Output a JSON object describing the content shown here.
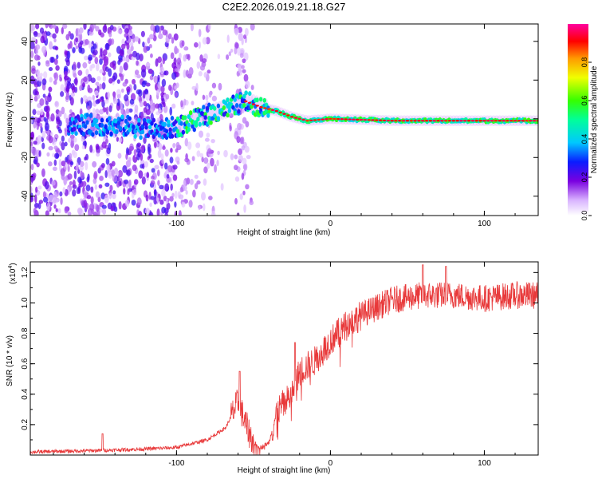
{
  "title": "C2E2.2026.019.21.18.G27",
  "chart_data": [
    {
      "type": "heatmap",
      "xlabel": "Height of straight line (km)",
      "ylabel": "Frequency (Hz)",
      "xlim": [
        -195,
        135
      ],
      "ylim": [
        -50,
        49
      ],
      "xticks": [
        -100,
        0,
        100
      ],
      "yticks": [
        -40,
        -20,
        0,
        20,
        40
      ],
      "ridge_frequency_hz": [
        {
          "x": -160,
          "y": -3
        },
        {
          "x": -130,
          "y": -4
        },
        {
          "x": -110,
          "y": -6
        },
        {
          "x": -95,
          "y": -3
        },
        {
          "x": -80,
          "y": 2
        },
        {
          "x": -65,
          "y": 6
        },
        {
          "x": -55,
          "y": 9
        },
        {
          "x": -45,
          "y": 6
        },
        {
          "x": -35,
          "y": 4
        },
        {
          "x": -25,
          "y": 1
        },
        {
          "x": -15,
          "y": -1
        },
        {
          "x": 0,
          "y": 0
        },
        {
          "x": 40,
          "y": -1
        },
        {
          "x": 80,
          "y": -1
        },
        {
          "x": 135,
          "y": -1
        }
      ],
      "colorbar": {
        "label": "Normalized spectral amplitude",
        "range": [
          0,
          1
        ],
        "ticks": [
          "0.0",
          "0.2",
          "0.4",
          "0.6",
          "0.8"
        ]
      }
    },
    {
      "type": "line",
      "series_name": "SNR",
      "color": "#e8393a",
      "xlabel": "Height of straight line (km)",
      "ylabel": "SNR (10 * v/v)",
      "multiplier_label": "(x10",
      "multiplier_exponent": "4",
      "multiplier_close": ")",
      "xlim": [
        -195,
        135
      ],
      "ylim": [
        0,
        1.27
      ],
      "xticks": [
        -100,
        0,
        100
      ],
      "yticks": [
        "0.2",
        "0.4",
        "0.6",
        "0.8",
        "1.0",
        "1.2"
      ],
      "ytick_values": [
        0.2,
        0.4,
        0.6,
        0.8,
        1.0,
        1.2
      ],
      "trend": [
        {
          "x": -195,
          "y": 0.02
        },
        {
          "x": -150,
          "y": 0.03
        },
        {
          "x": -120,
          "y": 0.04
        },
        {
          "x": -100,
          "y": 0.05
        },
        {
          "x": -80,
          "y": 0.1
        },
        {
          "x": -68,
          "y": 0.18
        },
        {
          "x": -60,
          "y": 0.35
        },
        {
          "x": -55,
          "y": 0.2
        },
        {
          "x": -50,
          "y": 0.08
        },
        {
          "x": -45,
          "y": 0.05
        },
        {
          "x": -40,
          "y": 0.08
        },
        {
          "x": -35,
          "y": 0.28
        },
        {
          "x": -25,
          "y": 0.4
        },
        {
          "x": -20,
          "y": 0.55
        },
        {
          "x": -10,
          "y": 0.62
        },
        {
          "x": 0,
          "y": 0.75
        },
        {
          "x": 10,
          "y": 0.85
        },
        {
          "x": 20,
          "y": 0.92
        },
        {
          "x": 30,
          "y": 0.97
        },
        {
          "x": 40,
          "y": 1.02
        },
        {
          "x": 60,
          "y": 1.05
        },
        {
          "x": 80,
          "y": 1.05
        },
        {
          "x": 100,
          "y": 1.03
        },
        {
          "x": 120,
          "y": 1.05
        },
        {
          "x": 135,
          "y": 1.05
        }
      ],
      "spikes": [
        {
          "x": -148,
          "y": 0.14
        },
        {
          "x": -59,
          "y": 0.55
        },
        {
          "x": -23,
          "y": 0.74
        },
        {
          "x": 60,
          "y": 1.25
        },
        {
          "x": 75,
          "y": 1.24
        }
      ]
    }
  ]
}
